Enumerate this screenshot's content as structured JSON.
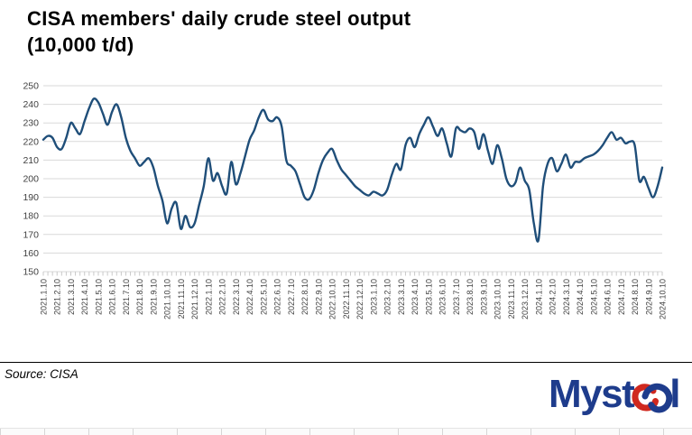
{
  "header": {
    "title_lines": [
      "CISA members' daily crude steel output",
      "(10,000 t/d)"
    ]
  },
  "footer": {
    "source_label": "Source: CISA",
    "logo": {
      "name": "Mysteel",
      "prefix": "Myst",
      "suffix": "l"
    }
  },
  "colors": {
    "line": "#1f4e79",
    "grid": "#d9d9d9",
    "tick": "#c9c9c9",
    "axis_text": "#404040",
    "logo_blue": "#1e3c8c",
    "logo_red": "#d0281e"
  },
  "chart_data": {
    "type": "line",
    "title": "CISA members' daily crude steel output (10,000 t/d)",
    "xlabel": "",
    "ylabel": "",
    "ylim": [
      150,
      250
    ],
    "y_ticks": [
      250,
      240,
      230,
      220,
      210,
      200,
      190,
      180,
      170,
      160,
      150
    ],
    "grid": "horizontal",
    "legend": "none",
    "smooth": true,
    "points_per_label": 3,
    "x_labels": [
      "2021.1.10",
      "2021.2.10",
      "2021.3.10",
      "2021.4.10",
      "2021.5.10",
      "2021.6.10",
      "2021.7.10",
      "2021.8.10",
      "2021.9.10",
      "2021.10.10",
      "2021.11.10",
      "2021.12.10",
      "2022.1.10",
      "2022.2.10",
      "2022.3.10",
      "2022.4.10",
      "2022.5.10",
      "2022.6.10",
      "2022.7.10",
      "2022.8.10",
      "2022.9.10",
      "2022.10.10",
      "2022.11.10",
      "2022.12.10",
      "2023.1.10",
      "2023.2.10",
      "2023.3.10",
      "2023.4.10",
      "2023.5.10",
      "2023.6.10",
      "2023.7.10",
      "2023.8.10",
      "2023.9.10",
      "2023.10.10",
      "2023.11.10",
      "2023.12.10",
      "2024.1.10",
      "2024.2.10",
      "2024.3.10",
      "2024.4.10",
      "2024.5.10",
      "2024.6.10",
      "2024.7.10",
      "2024.8.10",
      "2024.9.10",
      "2024.10.10"
    ],
    "series": [
      {
        "name": "Daily crude steel output (10,000 t/d)",
        "values": [
          221,
          223,
          222,
          217,
          216,
          222,
          230,
          227,
          224,
          231,
          238,
          243,
          241,
          235,
          229,
          236,
          240,
          233,
          222,
          215,
          211,
          207,
          209,
          211,
          206,
          196,
          188,
          176,
          184,
          187,
          173,
          180,
          174,
          176,
          186,
          196,
          211,
          199,
          203,
          196,
          192,
          209,
          197,
          203,
          212,
          221,
          226,
          233,
          237,
          232,
          231,
          233,
          228,
          210,
          207,
          204,
          197,
          190,
          189,
          194,
          203,
          210,
          214,
          216,
          210,
          205,
          202,
          199,
          196,
          194,
          192,
          191,
          193,
          192,
          191,
          194,
          202,
          208,
          205,
          218,
          222,
          217,
          224,
          229,
          233,
          228,
          223,
          227,
          219,
          212,
          227,
          226,
          225,
          227,
          225,
          216,
          224,
          215,
          208,
          218,
          211,
          200,
          196,
          198,
          206,
          199,
          194,
          176,
          167,
          196,
          208,
          211,
          204,
          208,
          213,
          206,
          209,
          209,
          211,
          212,
          213,
          215,
          218,
          222,
          225,
          221,
          222,
          219,
          220,
          218,
          199,
          201,
          195,
          190,
          196,
          206
        ]
      }
    ]
  }
}
